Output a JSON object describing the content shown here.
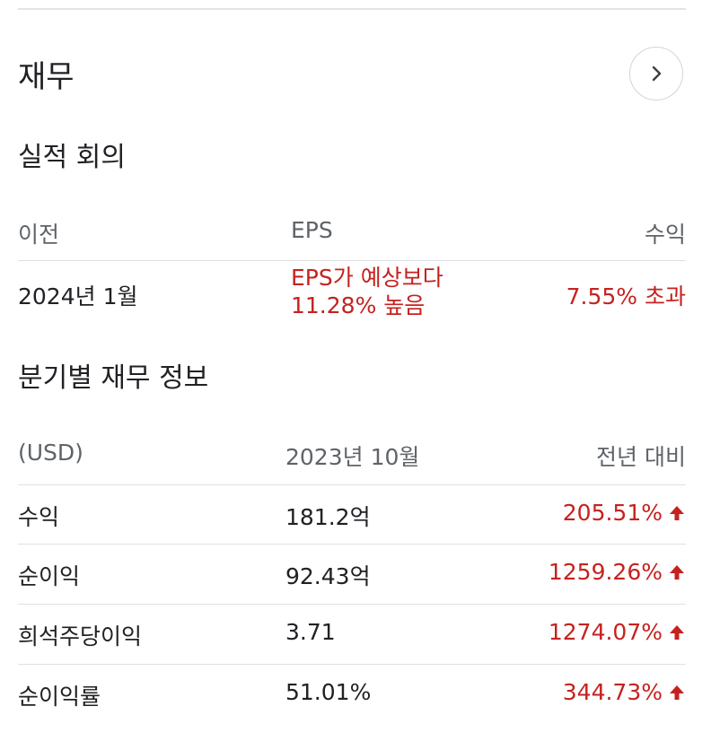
{
  "section": {
    "title": "재무"
  },
  "earnings": {
    "heading": "실적 회의",
    "headers": {
      "previous": "이전",
      "eps": "EPS",
      "revenue": "수익"
    },
    "row": {
      "period": "2024년 1월",
      "eps_line1": "EPS가 예상보다",
      "eps_line2": "11.28% 높음",
      "revenue": "7.55% 초과"
    }
  },
  "quarterly": {
    "heading": "분기별 재무 정보",
    "headers": {
      "currency": "(USD)",
      "period": "2023년 10월",
      "yoy": "전년 대비"
    },
    "rows": [
      {
        "label": "수익",
        "value": "181.2억",
        "change": "205.51%"
      },
      {
        "label": "순이익",
        "value": "92.43억",
        "change": "1259.26%"
      },
      {
        "label": "희석주당이익",
        "value": "3.71",
        "change": "1274.07%"
      },
      {
        "label": "순이익률",
        "value": "51.01%",
        "change": "344.73%"
      }
    ]
  },
  "colors": {
    "positive": "#c5221f",
    "text": "#202124",
    "muted": "#5f6368",
    "divider": "#e0e0e0"
  },
  "icons": {
    "more": "chevron-right-icon",
    "change": "arrow-up-icon"
  }
}
